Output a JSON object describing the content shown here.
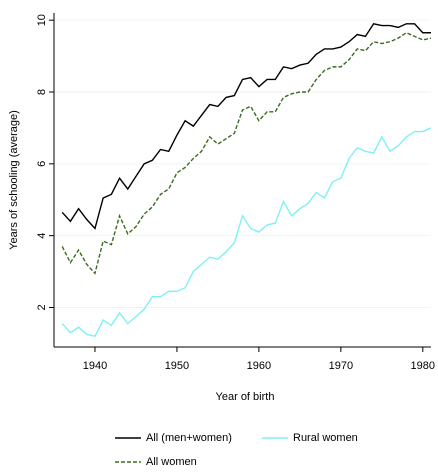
{
  "chart_data": {
    "type": "line",
    "x_label": "Year of birth",
    "y_label": "Years of schooling (average)",
    "x": [
      1936,
      1937,
      1938,
      1939,
      1940,
      1941,
      1942,
      1943,
      1944,
      1945,
      1946,
      1947,
      1948,
      1949,
      1950,
      1951,
      1952,
      1953,
      1954,
      1955,
      1956,
      1957,
      1958,
      1959,
      1960,
      1961,
      1962,
      1963,
      1964,
      1965,
      1966,
      1967,
      1968,
      1969,
      1970,
      1971,
      1972,
      1973,
      1974,
      1975,
      1976,
      1977,
      1978,
      1979,
      1980,
      1981
    ],
    "series": [
      {
        "name": "All (men+women)",
        "color": "#000000",
        "style": "solid",
        "values": [
          4.65,
          4.4,
          4.75,
          4.45,
          4.2,
          5.05,
          5.15,
          5.6,
          5.3,
          5.65,
          6.0,
          6.1,
          6.4,
          6.35,
          6.8,
          7.2,
          7.05,
          7.35,
          7.65,
          7.6,
          7.85,
          7.9,
          8.35,
          8.4,
          8.15,
          8.35,
          8.35,
          8.7,
          8.65,
          8.75,
          8.8,
          9.05,
          9.2,
          9.2,
          9.25,
          9.4,
          9.6,
          9.55,
          9.9,
          9.85,
          9.85,
          9.8,
          9.9,
          9.9,
          9.65,
          9.65
        ]
      },
      {
        "name": "Rural women",
        "color": "#7ff0f5",
        "style": "solid",
        "values": [
          1.55,
          1.3,
          1.45,
          1.25,
          1.2,
          1.65,
          1.5,
          1.85,
          1.55,
          1.75,
          1.95,
          2.3,
          2.3,
          2.45,
          2.45,
          2.55,
          3.0,
          3.2,
          3.4,
          3.35,
          3.55,
          3.8,
          4.55,
          4.2,
          4.1,
          4.3,
          4.35,
          4.95,
          4.55,
          4.75,
          4.9,
          5.2,
          5.05,
          5.5,
          5.6,
          6.15,
          6.45,
          6.35,
          6.3,
          6.75,
          6.35,
          6.5,
          6.75,
          6.9,
          6.9,
          7.0
        ]
      },
      {
        "name": "All women",
        "color": "#3a6b1f",
        "style": "dashed",
        "values": [
          3.7,
          3.25,
          3.6,
          3.2,
          2.95,
          3.85,
          3.75,
          4.55,
          4.05,
          4.25,
          4.6,
          4.8,
          5.15,
          5.3,
          5.75,
          5.9,
          6.15,
          6.35,
          6.75,
          6.55,
          6.7,
          6.85,
          7.5,
          7.6,
          7.2,
          7.45,
          7.45,
          7.85,
          7.95,
          8.0,
          8.0,
          8.35,
          8.6,
          8.7,
          8.7,
          8.9,
          9.2,
          9.15,
          9.4,
          9.35,
          9.4,
          9.5,
          9.65,
          9.55,
          9.45,
          9.5
        ]
      }
    ],
    "xlim": [
      1935,
      1981
    ],
    "xticks": [
      1940,
      1950,
      1960,
      1970,
      1980
    ],
    "ylim": [
      0.9,
      10.2
    ],
    "yticks": [
      2,
      4,
      6,
      8,
      10
    ],
    "grid": true,
    "legend": "bottom"
  }
}
